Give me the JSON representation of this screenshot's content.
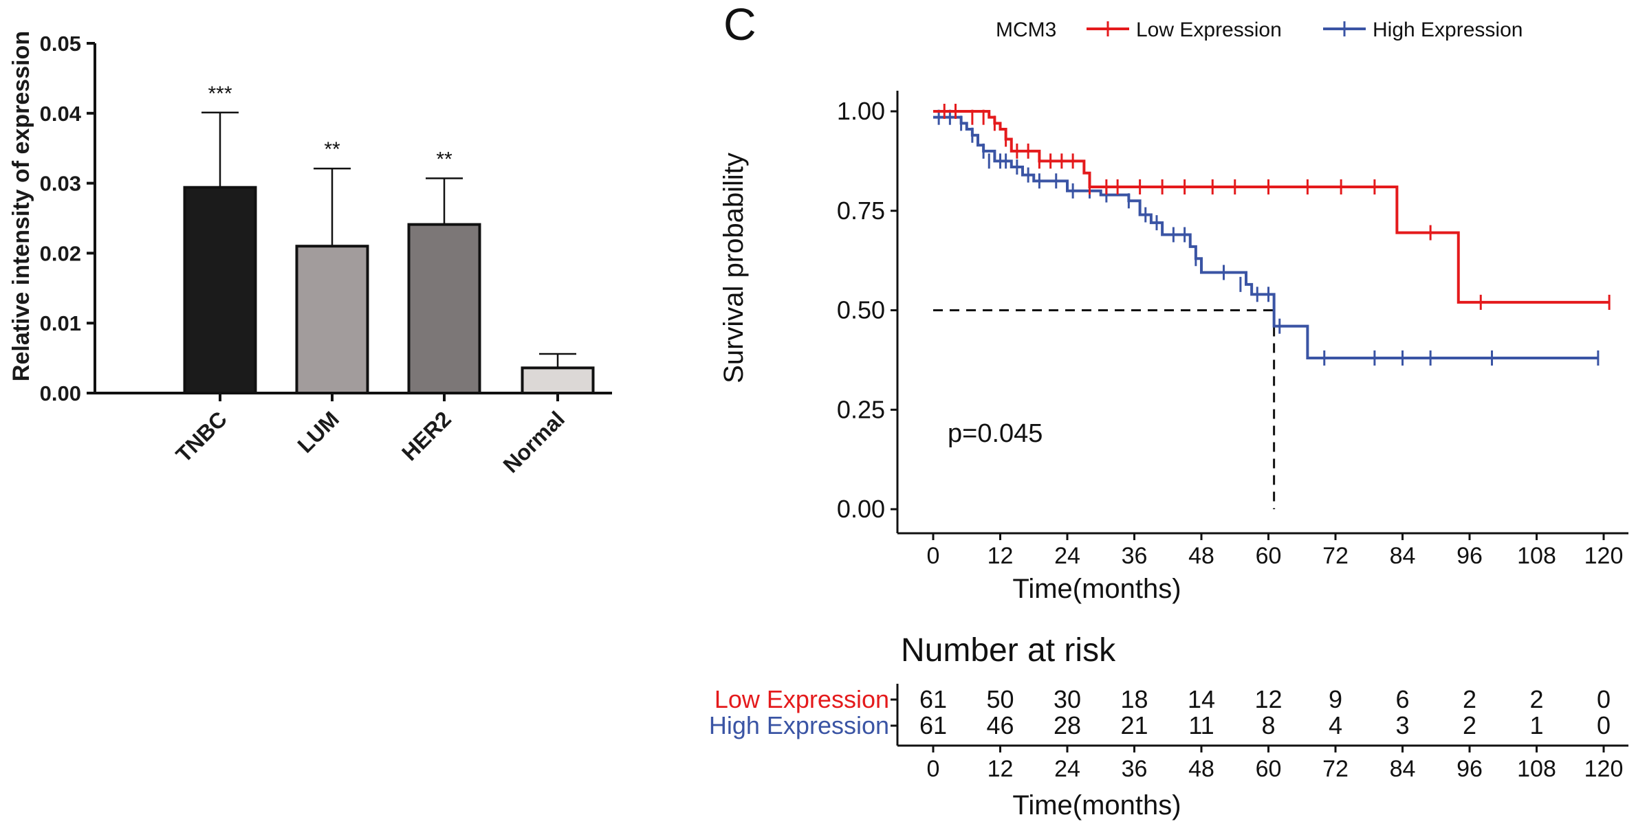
{
  "panel_label": "C",
  "chart_data": [
    {
      "type": "bar",
      "title": "",
      "xlabel": "",
      "ylabel": "Relative intensity of expression",
      "ylim": [
        0,
        0.05
      ],
      "yticks": [
        "0.00",
        "0.01",
        "0.02",
        "0.03",
        "0.04",
        "0.05"
      ],
      "yticks_values": [
        0,
        0.01,
        0.02,
        0.03,
        0.04,
        0.05
      ],
      "categories": [
        "TNBC",
        "LUM",
        "HER2",
        "Normal"
      ],
      "values": [
        0.0294,
        0.021,
        0.0241,
        0.0036
      ],
      "errors": [
        0.0107,
        0.0111,
        0.0066,
        0.002
      ],
      "significance": [
        "***",
        "**",
        "**",
        ""
      ],
      "bar_colors": [
        "#1b1b1b",
        "#a29c9c",
        "#7c7777",
        "#dcd8d6"
      ]
    },
    {
      "type": "line",
      "subtype": "kaplan-meier",
      "legend_title": "MCM3",
      "legend_placement": "top",
      "xlabel": "Time(months)",
      "ylabel": "Survival probability",
      "xlim": [
        0,
        120
      ],
      "ylim": [
        0,
        1
      ],
      "xticks": [
        "0",
        "12",
        "24",
        "36",
        "48",
        "60",
        "72",
        "84",
        "96",
        "108",
        "120"
      ],
      "xticks_values": [
        0,
        12,
        24,
        36,
        48,
        60,
        72,
        84,
        96,
        108,
        120
      ],
      "yticks": [
        "0.00",
        "0.25",
        "0.50",
        "0.75",
        "1.00"
      ],
      "yticks_values": [
        0,
        0.25,
        0.5,
        0.75,
        1
      ],
      "p_value_text": "p=0.045",
      "median_line": {
        "y": 0.5,
        "x": 61
      },
      "series": [
        {
          "name": "Low Expression",
          "color": "#e41a1c",
          "steps": [
            [
              0,
              1.0
            ],
            [
              10,
              0.985
            ],
            [
              11,
              0.97
            ],
            [
              12,
              0.955
            ],
            [
              13,
              0.93
            ],
            [
              14,
              0.9
            ],
            [
              19,
              0.875
            ],
            [
              27,
              0.845
            ],
            [
              28,
              0.81
            ],
            [
              83,
              0.81
            ],
            [
              83,
              0.695
            ],
            [
              94,
              0.695
            ],
            [
              94,
              0.52
            ],
            [
              121,
              0.52
            ]
          ],
          "censors": [
            [
              2,
              1.0
            ],
            [
              4,
              1.0
            ],
            [
              7,
              0.985
            ],
            [
              9,
              0.985
            ],
            [
              11,
              0.97
            ],
            [
              13,
              0.93
            ],
            [
              15,
              0.9
            ],
            [
              17,
              0.9
            ],
            [
              19,
              0.875
            ],
            [
              21,
              0.875
            ],
            [
              23,
              0.875
            ],
            [
              25,
              0.875
            ],
            [
              28,
              0.81
            ],
            [
              31,
              0.81
            ],
            [
              33,
              0.81
            ],
            [
              37,
              0.81
            ],
            [
              41,
              0.81
            ],
            [
              45,
              0.81
            ],
            [
              50,
              0.81
            ],
            [
              54,
              0.81
            ],
            [
              60,
              0.81
            ],
            [
              67,
              0.81
            ],
            [
              73,
              0.81
            ],
            [
              79,
              0.81
            ],
            [
              89,
              0.695
            ],
            [
              98,
              0.52
            ],
            [
              121,
              0.52
            ]
          ]
        },
        {
          "name": "High Expression",
          "color": "#3a54a4",
          "steps": [
            [
              0,
              0.985
            ],
            [
              5,
              0.97
            ],
            [
              6,
              0.955
            ],
            [
              7,
              0.94
            ],
            [
              8,
              0.915
            ],
            [
              9,
              0.9
            ],
            [
              11,
              0.875
            ],
            [
              14,
              0.86
            ],
            [
              16,
              0.84
            ],
            [
              18,
              0.825
            ],
            [
              24,
              0.8
            ],
            [
              30,
              0.79
            ],
            [
              35,
              0.775
            ],
            [
              37,
              0.74
            ],
            [
              39,
              0.72
            ],
            [
              41,
              0.69
            ],
            [
              46,
              0.66
            ],
            [
              47,
              0.63
            ],
            [
              48,
              0.595
            ],
            [
              56,
              0.565
            ],
            [
              57,
              0.54
            ],
            [
              61,
              0.54
            ],
            [
              61,
              0.46
            ],
            [
              67,
              0.46
            ],
            [
              67,
              0.38
            ],
            [
              119,
              0.38
            ]
          ],
          "censors": [
            [
              1,
              0.985
            ],
            [
              3,
              0.985
            ],
            [
              5,
              0.97
            ],
            [
              7,
              0.94
            ],
            [
              9,
              0.9
            ],
            [
              10,
              0.875
            ],
            [
              12,
              0.875
            ],
            [
              13,
              0.875
            ],
            [
              15,
              0.86
            ],
            [
              17,
              0.84
            ],
            [
              19,
              0.825
            ],
            [
              22,
              0.825
            ],
            [
              25,
              0.8
            ],
            [
              28,
              0.8
            ],
            [
              31,
              0.79
            ],
            [
              35,
              0.775
            ],
            [
              38,
              0.74
            ],
            [
              40,
              0.72
            ],
            [
              43,
              0.69
            ],
            [
              45,
              0.69
            ],
            [
              47,
              0.63
            ],
            [
              52,
              0.595
            ],
            [
              55,
              0.565
            ],
            [
              58,
              0.54
            ],
            [
              60,
              0.54
            ],
            [
              62,
              0.46
            ],
            [
              70,
              0.38
            ],
            [
              79,
              0.38
            ],
            [
              84,
              0.38
            ],
            [
              89,
              0.38
            ],
            [
              100,
              0.38
            ],
            [
              119,
              0.38
            ]
          ]
        }
      ]
    },
    {
      "type": "table",
      "title": "Number at risk",
      "xlabel": "Time(months)",
      "columns": [
        "0",
        "12",
        "24",
        "36",
        "48",
        "60",
        "72",
        "84",
        "96",
        "108",
        "120"
      ],
      "rows": [
        {
          "label": "Low Expression",
          "color": "#e41a1c",
          "values": [
            "61",
            "50",
            "30",
            "18",
            "14",
            "12",
            "9",
            "6",
            "2",
            "2",
            "0"
          ]
        },
        {
          "label": "High Expression",
          "color": "#3a54a4",
          "values": [
            "61",
            "46",
            "28",
            "21",
            "11",
            "8",
            "4",
            "3",
            "2",
            "1",
            "0"
          ]
        }
      ]
    }
  ]
}
